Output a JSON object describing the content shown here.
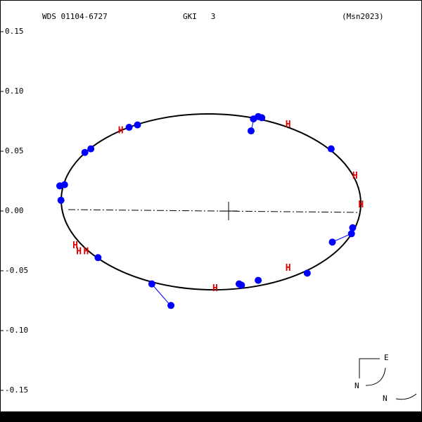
{
  "chart_data": {
    "type": "scatter",
    "title": "WDS 01104-6727",
    "annotations": [
      "GKI   3",
      "(Msn2023)",
      "E",
      "N",
      "N"
    ],
    "xlim": [
      -0.191,
      0.162
    ],
    "ylim": [
      -0.1765,
      0.1765
    ],
    "yticks": [
      0.15,
      {
        "value": 0.1,
        "label": "0.10"
      },
      0.05,
      {
        "value": 0,
        "label": "0.00"
      },
      -0.05,
      {
        "value": -0.1,
        "label": "-0.10"
      },
      -0.15
    ],
    "series": [
      {
        "color": "#0000ff",
        "marker": "circle",
        "x": [
          -0.14,
          -0.141,
          -0.137,
          -0.12,
          -0.115,
          -0.083,
          -0.076,
          0.019,
          0.021,
          0.025,
          0.028,
          0.086,
          0.104,
          0.103,
          0.087,
          0.066,
          0.025,
          0.011,
          0.009,
          -0.064,
          -0.048,
          -0.109
        ],
        "values": [
          0.009,
          0.021,
          0.022,
          0.049,
          0.052,
          0.07,
          0.072,
          0.067,
          0.077,
          0.079,
          0.078,
          0.052,
          -0.014,
          -0.019,
          -0.026,
          -0.052,
          -0.058,
          -0.062,
          -0.061,
          -0.061,
          -0.079,
          -0.039
        ]
      },
      {
        "color": "#e00000",
        "marker": "H",
        "x": [
          -0.09,
          0.05,
          0.106,
          0.111,
          -0.128,
          -0.125,
          -0.119,
          0.05,
          -0.011
        ],
        "values": [
          0.067,
          0.072,
          0.029,
          0.005,
          -0.029,
          -0.034,
          -0.034,
          -0.048,
          -0.065
        ]
      }
    ]
  }
}
